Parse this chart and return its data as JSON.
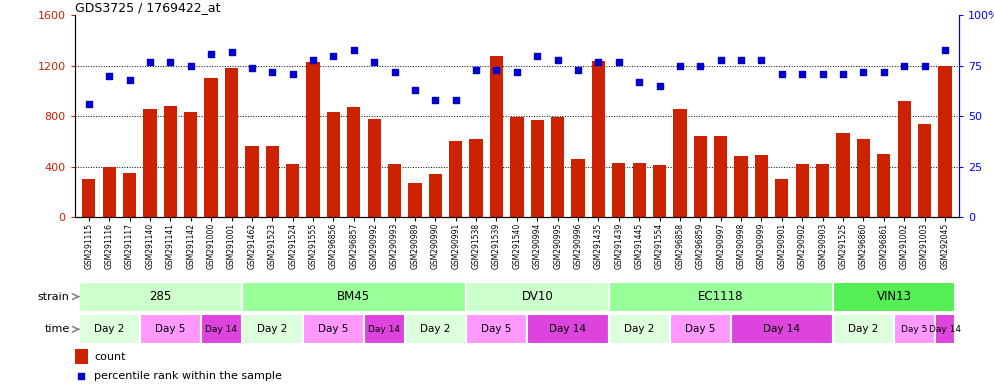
{
  "title": "GDS3725 / 1769422_at",
  "samples": [
    "GSM291115",
    "GSM291116",
    "GSM291117",
    "GSM291140",
    "GSM291141",
    "GSM291142",
    "GSM291000",
    "GSM291001",
    "GSM291462",
    "GSM291523",
    "GSM291524",
    "GSM291555",
    "GSM296856",
    "GSM296857",
    "GSM290992",
    "GSM290993",
    "GSM290989",
    "GSM290990",
    "GSM290991",
    "GSM291538",
    "GSM291539",
    "GSM291540",
    "GSM290994",
    "GSM290995",
    "GSM290996",
    "GSM291435",
    "GSM291439",
    "GSM291445",
    "GSM291554",
    "GSM296858",
    "GSM296859",
    "GSM290997",
    "GSM290998",
    "GSM290999",
    "GSM290901",
    "GSM290902",
    "GSM290903",
    "GSM291525",
    "GSM296860",
    "GSM296861",
    "GSM291002",
    "GSM291003",
    "GSM292045"
  ],
  "counts": [
    300,
    400,
    350,
    860,
    880,
    830,
    1100,
    1180,
    560,
    560,
    420,
    1230,
    830,
    870,
    780,
    420,
    270,
    340,
    600,
    620,
    1280,
    790,
    770,
    790,
    460,
    1240,
    430,
    430,
    410,
    860,
    640,
    640,
    480,
    490,
    300,
    420,
    420,
    670,
    620,
    500,
    920,
    740,
    1200
  ],
  "percentiles": [
    56,
    70,
    68,
    77,
    77,
    75,
    81,
    82,
    74,
    72,
    71,
    78,
    80,
    83,
    77,
    72,
    63,
    58,
    58,
    73,
    73,
    72,
    80,
    78,
    73,
    77,
    77,
    67,
    65,
    75,
    75,
    78,
    78,
    78,
    71,
    71,
    71,
    71,
    72,
    72,
    75,
    75,
    83
  ],
  "strains": [
    {
      "label": "285",
      "start": 0,
      "end": 8,
      "color": "#ccffcc"
    },
    {
      "label": "BM45",
      "start": 8,
      "end": 19,
      "color": "#99ff99"
    },
    {
      "label": "DV10",
      "start": 19,
      "end": 26,
      "color": "#ccffcc"
    },
    {
      "label": "EC1118",
      "start": 26,
      "end": 37,
      "color": "#99ff99"
    },
    {
      "label": "VIN13",
      "start": 37,
      "end": 43,
      "color": "#55ee55"
    }
  ],
  "times": [
    {
      "label": "Day 2",
      "start": 0,
      "end": 3,
      "color": "#ddffdd"
    },
    {
      "label": "Day 5",
      "start": 3,
      "end": 6,
      "color": "#ff99ff"
    },
    {
      "label": "Day 14",
      "start": 6,
      "end": 8,
      "color": "#dd44dd"
    },
    {
      "label": "Day 2",
      "start": 8,
      "end": 11,
      "color": "#ddffdd"
    },
    {
      "label": "Day 5",
      "start": 11,
      "end": 14,
      "color": "#ff99ff"
    },
    {
      "label": "Day 14",
      "start": 14,
      "end": 16,
      "color": "#dd44dd"
    },
    {
      "label": "Day 2",
      "start": 16,
      "end": 19,
      "color": "#ddffdd"
    },
    {
      "label": "Day 5",
      "start": 19,
      "end": 22,
      "color": "#ff99ff"
    },
    {
      "label": "Day 14",
      "start": 22,
      "end": 26,
      "color": "#dd44dd"
    },
    {
      "label": "Day 2",
      "start": 26,
      "end": 29,
      "color": "#ddffdd"
    },
    {
      "label": "Day 5",
      "start": 29,
      "end": 32,
      "color": "#ff99ff"
    },
    {
      "label": "Day 14",
      "start": 32,
      "end": 37,
      "color": "#dd44dd"
    },
    {
      "label": "Day 2",
      "start": 37,
      "end": 40,
      "color": "#ddffdd"
    },
    {
      "label": "Day 5",
      "start": 40,
      "end": 42,
      "color": "#ff99ff"
    },
    {
      "label": "Day 14",
      "start": 42,
      "end": 43,
      "color": "#dd44dd"
    }
  ],
  "bar_color": "#cc2200",
  "scatter_color": "#0000cc",
  "left_ylim": [
    0,
    1600
  ],
  "right_ylim": [
    0,
    100
  ],
  "left_yticks": [
    0,
    400,
    800,
    1200,
    1600
  ],
  "right_yticks": [
    0,
    25,
    50,
    75,
    100
  ],
  "right_yticklabels": [
    "0",
    "25",
    "50",
    "75",
    "100%"
  ]
}
